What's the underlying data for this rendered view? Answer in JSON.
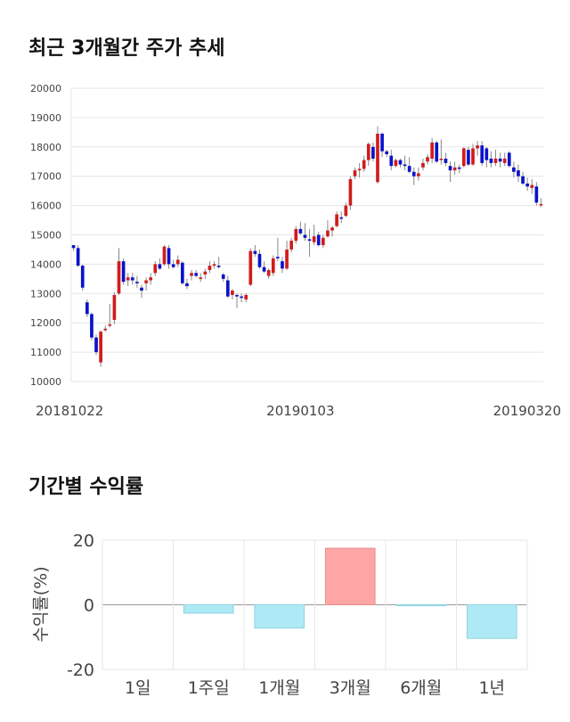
{
  "titles": {
    "price_chart": "최근 3개월간 주가 추세",
    "returns_chart": "기간별 수익률"
  },
  "chart_data": [
    {
      "type": "candlestick",
      "ylim": [
        10000,
        20000
      ],
      "y_ticks": [
        "20000",
        "19000",
        "18000",
        "17000",
        "16000",
        "15000",
        "14000",
        "13000",
        "12000",
        "11000",
        "10000"
      ],
      "x_tick_labels": [
        {
          "label": "20181022",
          "index": 0
        },
        {
          "label": "20190103",
          "index": 50
        },
        {
          "label": "20190320",
          "index": 102
        }
      ],
      "colors": {
        "up": "#d01c1c",
        "down": "#0a12c8",
        "wick": "#888888"
      },
      "grid": true,
      "candles": [
        [
          14650,
          14650,
          14450,
          14550
        ],
        [
          14550,
          14650,
          13900,
          13950
        ],
        [
          13950,
          14000,
          13100,
          13200
        ],
        [
          12700,
          12800,
          12200,
          12300
        ],
        [
          12300,
          12350,
          11400,
          11500
        ],
        [
          11500,
          11600,
          10900,
          11000
        ],
        [
          10650,
          11750,
          10500,
          11700
        ],
        [
          11750,
          11900,
          11700,
          11800
        ],
        [
          11900,
          12650,
          11850,
          11950
        ],
        [
          12100,
          13050,
          11950,
          12950
        ],
        [
          13000,
          14550,
          12950,
          14100
        ],
        [
          14100,
          14200,
          13300,
          13400
        ],
        [
          13450,
          13700,
          13250,
          13550
        ],
        [
          13550,
          13700,
          13300,
          13450
        ],
        [
          13400,
          13600,
          13200,
          13350
        ],
        [
          13200,
          13300,
          12850,
          13100
        ],
        [
          13350,
          13550,
          13100,
          13450
        ],
        [
          13450,
          13700,
          13300,
          13550
        ],
        [
          13700,
          14100,
          13600,
          14000
        ],
        [
          14000,
          14200,
          13800,
          13850
        ],
        [
          14000,
          14650,
          13950,
          14600
        ],
        [
          14550,
          14650,
          13850,
          14000
        ],
        [
          14000,
          14150,
          13850,
          13900
        ],
        [
          14000,
          14300,
          13900,
          14150
        ],
        [
          14050,
          14100,
          13300,
          13350
        ],
        [
          13350,
          13500,
          13150,
          13250
        ],
        [
          13600,
          13800,
          13450,
          13700
        ],
        [
          13700,
          13800,
          13550,
          13600
        ],
        [
          13500,
          13700,
          13400,
          13550
        ],
        [
          13650,
          13850,
          13500,
          13750
        ],
        [
          13800,
          14100,
          13700,
          13950
        ],
        [
          13950,
          14100,
          13850,
          14000
        ],
        [
          13950,
          14250,
          13850,
          13900
        ],
        [
          13650,
          13700,
          13400,
          13500
        ],
        [
          13450,
          13600,
          12850,
          12900
        ],
        [
          12950,
          13150,
          12800,
          13100
        ],
        [
          12950,
          13000,
          12500,
          12900
        ],
        [
          12900,
          13000,
          12700,
          12850
        ],
        [
          12800,
          13000,
          12700,
          12950
        ],
        [
          13300,
          14550,
          13250,
          14450
        ],
        [
          14450,
          14650,
          14250,
          14350
        ],
        [
          14350,
          14500,
          13850,
          13900
        ],
        [
          13900,
          14100,
          13700,
          13750
        ],
        [
          13600,
          13850,
          13500,
          13800
        ],
        [
          13700,
          14300,
          13600,
          14200
        ],
        [
          14250,
          14900,
          14100,
          14200
        ],
        [
          14100,
          14250,
          13700,
          13850
        ],
        [
          13850,
          14800,
          13800,
          14500
        ],
        [
          14500,
          14900,
          14400,
          14800
        ],
        [
          14800,
          15300,
          14700,
          15200
        ],
        [
          15200,
          15450,
          15000,
          15050
        ],
        [
          15000,
          15400,
          14800,
          14900
        ],
        [
          14850,
          15200,
          14250,
          14800
        ],
        [
          14750,
          15350,
          14650,
          14950
        ],
        [
          15000,
          15100,
          14600,
          14650
        ],
        [
          14650,
          15000,
          14550,
          14900
        ],
        [
          14950,
          15500,
          14900,
          15150
        ],
        [
          15150,
          15300,
          14950,
          15250
        ],
        [
          15300,
          15800,
          15250,
          15700
        ],
        [
          15600,
          15800,
          15400,
          15550
        ],
        [
          15650,
          16100,
          15600,
          16000
        ],
        [
          16000,
          17000,
          15850,
          16900
        ],
        [
          17000,
          17300,
          16900,
          17200
        ],
        [
          17200,
          17450,
          16950,
          17250
        ],
        [
          17250,
          17700,
          17150,
          17550
        ],
        [
          17550,
          18150,
          17350,
          18100
        ],
        [
          18000,
          18150,
          17500,
          17600
        ],
        [
          16800,
          18700,
          16750,
          18450
        ],
        [
          18450,
          18500,
          17650,
          17850
        ],
        [
          17850,
          17900,
          17650,
          17750
        ],
        [
          17700,
          17900,
          17200,
          17350
        ],
        [
          17350,
          17600,
          17300,
          17550
        ],
        [
          17550,
          17600,
          17300,
          17400
        ],
        [
          17400,
          17700,
          17200,
          17350
        ],
        [
          17350,
          17650,
          17100,
          17150
        ],
        [
          17150,
          17300,
          16700,
          17000
        ],
        [
          17000,
          17300,
          16850,
          17100
        ],
        [
          17300,
          17600,
          17200,
          17450
        ],
        [
          17500,
          17750,
          17400,
          17650
        ],
        [
          17600,
          18300,
          17450,
          18150
        ],
        [
          18150,
          18200,
          17450,
          17500
        ],
        [
          17550,
          18250,
          17400,
          17600
        ],
        [
          17600,
          17800,
          17350,
          17450
        ],
        [
          17350,
          17500,
          16800,
          17200
        ],
        [
          17200,
          17500,
          17050,
          17300
        ],
        [
          17300,
          17400,
          17100,
          17250
        ],
        [
          17350,
          18000,
          17300,
          17950
        ],
        [
          17900,
          18000,
          17350,
          17400
        ],
        [
          17400,
          18100,
          17350,
          17950
        ],
        [
          17950,
          18200,
          17700,
          18050
        ],
        [
          18050,
          18200,
          17350,
          17450
        ],
        [
          17950,
          18000,
          17300,
          17550
        ],
        [
          17600,
          17850,
          17300,
          17450
        ],
        [
          17450,
          17900,
          17350,
          17600
        ],
        [
          17600,
          17800,
          17300,
          17500
        ],
        [
          17450,
          17800,
          17350,
          17600
        ],
        [
          17800,
          17850,
          17300,
          17350
        ],
        [
          17300,
          17500,
          16950,
          17150
        ],
        [
          17200,
          17400,
          16800,
          17000
        ],
        [
          17000,
          17150,
          16700,
          16750
        ],
        [
          16750,
          16950,
          16500,
          16650
        ],
        [
          16600,
          16900,
          16400,
          16700
        ],
        [
          16650,
          16800,
          16000,
          16100
        ],
        [
          16050,
          16250,
          15950,
          16050
        ]
      ]
    },
    {
      "type": "bar",
      "ylabel": "수익률(%)",
      "ylim": [
        -20,
        20
      ],
      "y_ticks": [
        "20",
        "0",
        "-20"
      ],
      "categories": [
        "1일",
        "1주일",
        "1개월",
        "3개월",
        "6개월",
        "1년"
      ],
      "values": [
        0,
        -2.6,
        -7.2,
        17.5,
        -0.3,
        -10.4
      ],
      "colors": {
        "positive": "#ffa5a5",
        "negative": "#aeeaf5"
      },
      "grid": true
    }
  ]
}
